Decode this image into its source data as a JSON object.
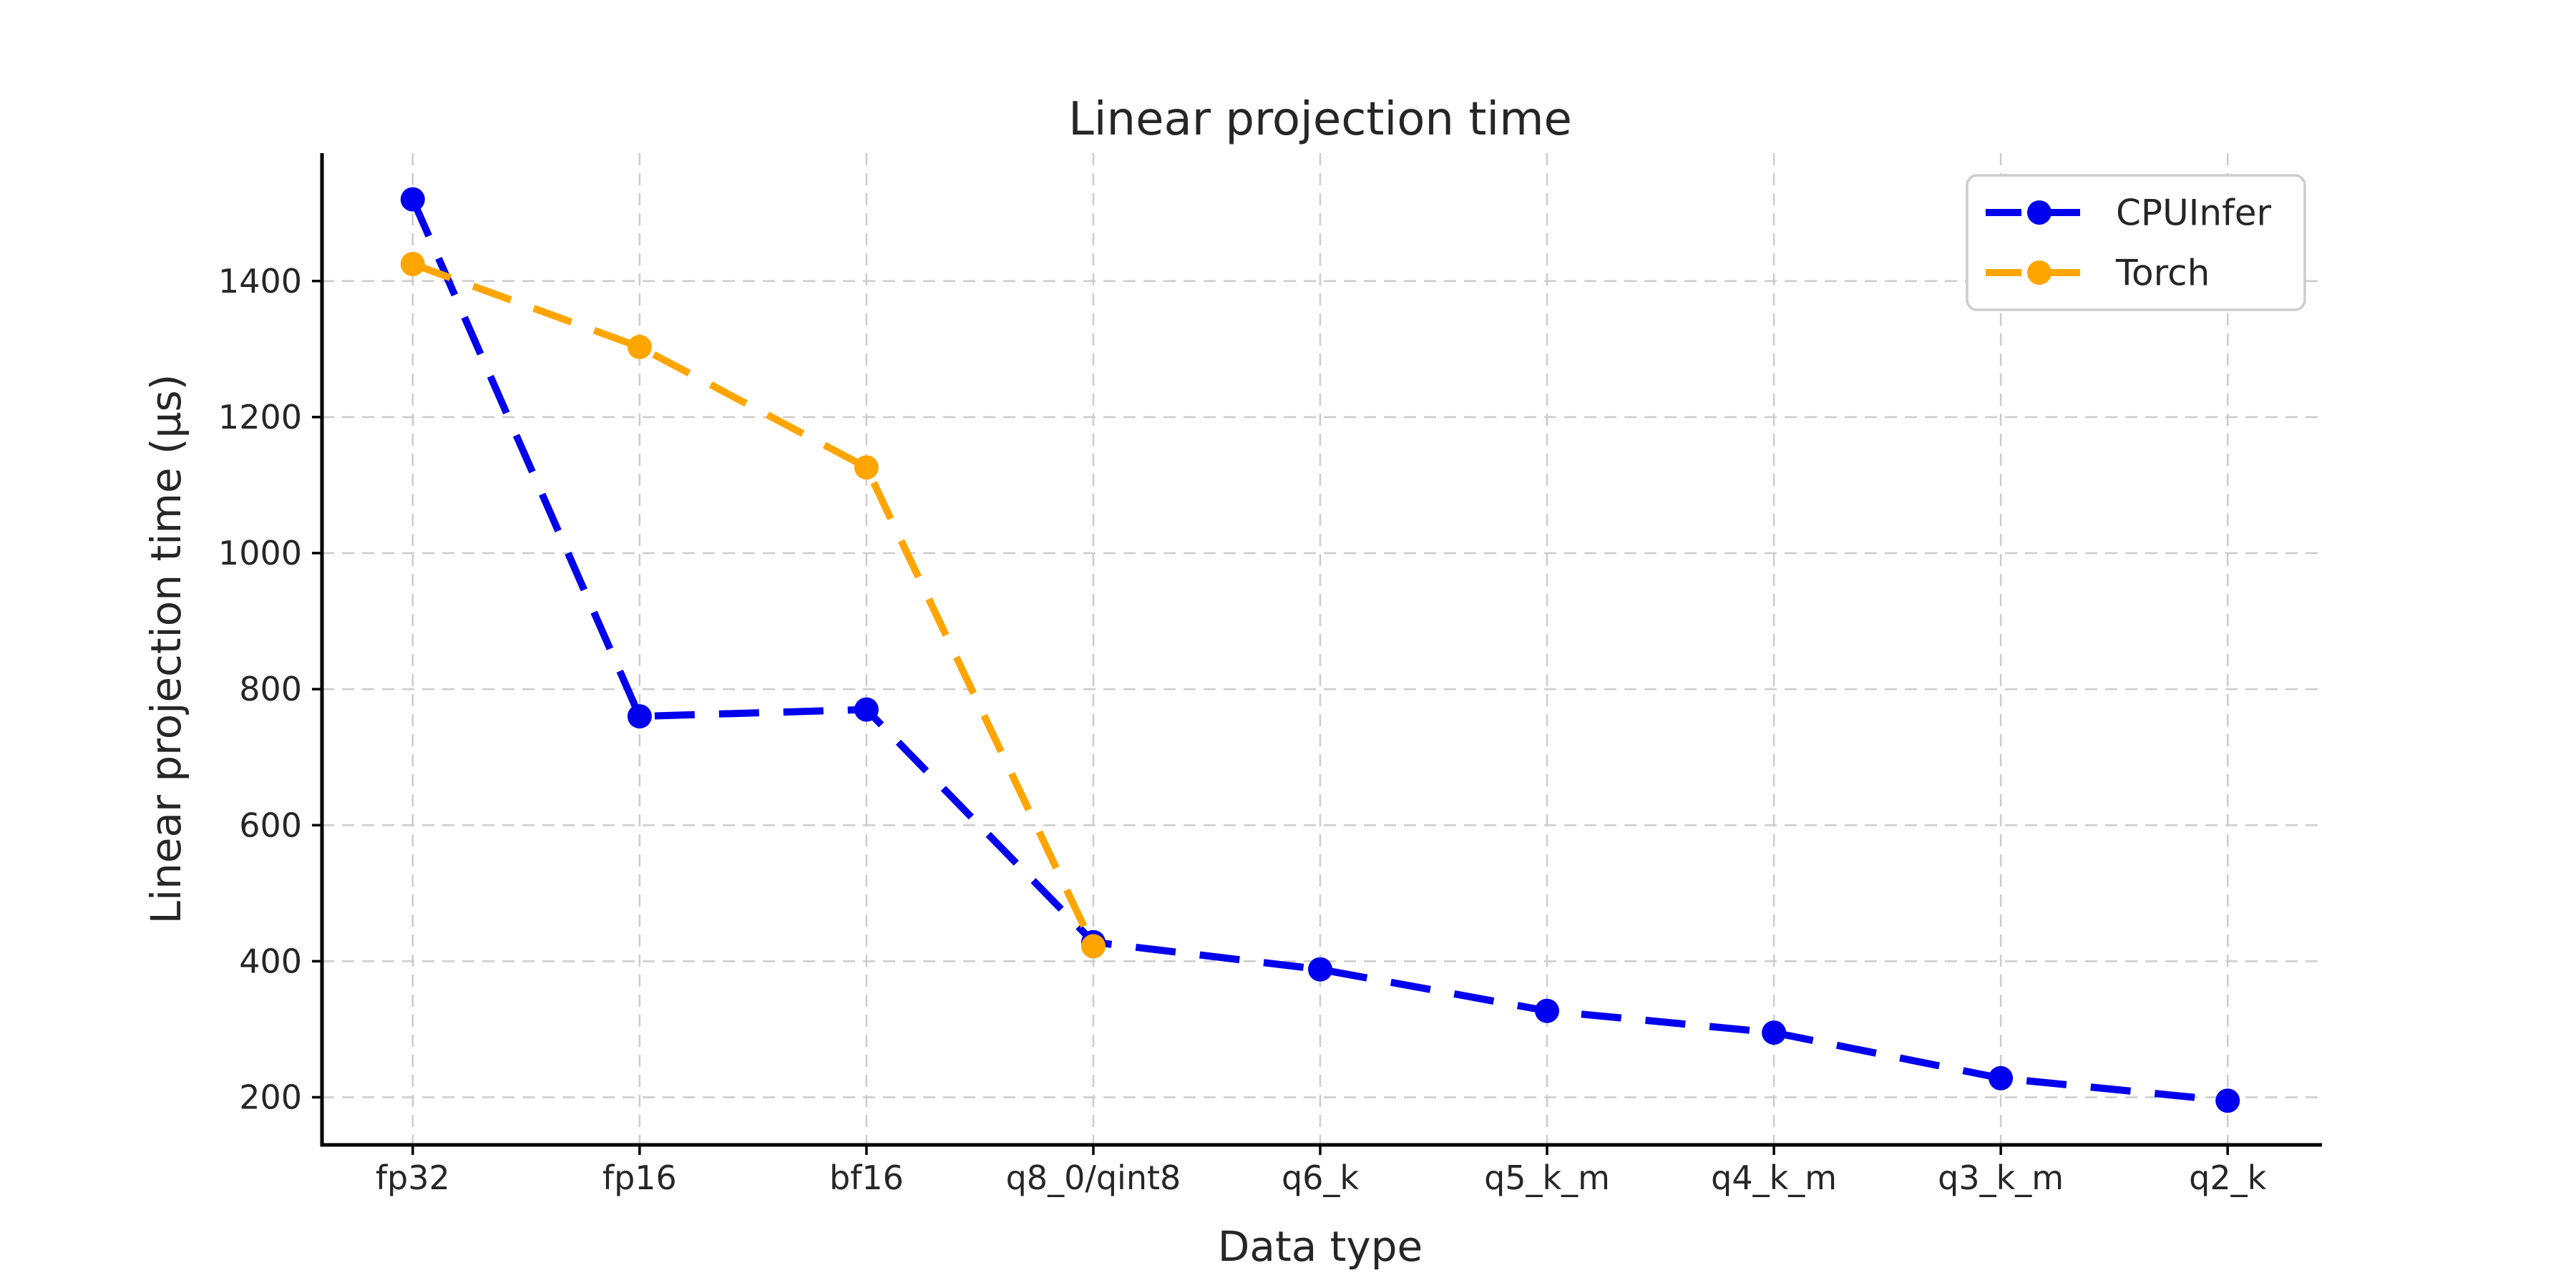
{
  "figure": {
    "background": "#ffffff",
    "text_color": "#262626",
    "grid_color": "#cccccc",
    "spine_color": "#000000",
    "legend_border_color": "#cccccc"
  },
  "chart_data": {
    "type": "line",
    "title": "Linear projection time",
    "xlabel": "Data type",
    "ylabel": "Linear projection time (µs)",
    "categories": [
      "fp32",
      "fp16",
      "bf16",
      "q8_0/qint8",
      "q6_k",
      "q5_k_m",
      "q4_k_m",
      "q3_k_m",
      "q2_k"
    ],
    "series": [
      {
        "name": "CPUInfer",
        "color": "#0000ee",
        "linestyle": "dashed",
        "marker": "circle",
        "values": [
          1520,
          760,
          770,
          428,
          388,
          327,
          295,
          228,
          195
        ]
      },
      {
        "name": "Torch",
        "color": "#ffa500",
        "linestyle": "dashed",
        "marker": "circle",
        "values": [
          1425,
          1303,
          1126,
          422,
          null,
          null,
          null,
          null,
          null
        ]
      }
    ],
    "yticks": [
      200,
      400,
      600,
      800,
      1000,
      1200,
      1400
    ],
    "ylim": [
      130,
      1588
    ],
    "grid": true,
    "grid_style": "dashed",
    "legend_position": "upper right",
    "legend_entries": [
      "CPUInfer",
      "Torch"
    ]
  }
}
